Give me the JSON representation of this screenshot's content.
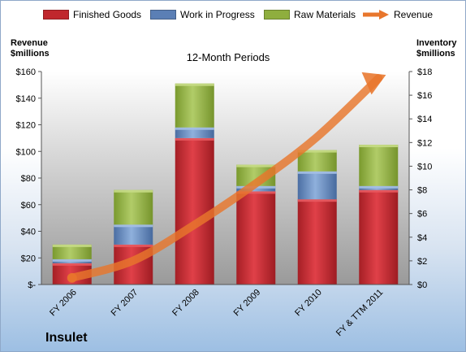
{
  "legend": {
    "finished_goods": "Finished Goods",
    "work_in_progress": "Work in Progress",
    "raw_materials": "Raw Materials",
    "revenue": "Revenue"
  },
  "axes": {
    "left_label_line1": "Revenue",
    "left_label_line2": "$millions",
    "right_label_line1": "Inventory",
    "right_label_line2": "$millions"
  },
  "period_label": "12-Month Periods",
  "company": "Insulet",
  "colors": {
    "finished_goods": "#c0272d",
    "work_in_progress": "#5b7fb5",
    "raw_materials": "#8fae3e",
    "revenue": "#e8762c",
    "plot_top": "#ffffff",
    "plot_bottom": "#9a9a9a"
  },
  "chart_data": {
    "type": "bar",
    "stacked": true,
    "categories": [
      "FY 2006",
      "FY 2007",
      "FY 2008",
      "FY 2009",
      "FY 2010",
      "FY & TTM 2011"
    ],
    "series": [
      {
        "name": "Finished Goods",
        "axis": "left",
        "values": [
          16,
          30,
          110,
          70,
          64,
          71
        ]
      },
      {
        "name": "Work in Progress",
        "axis": "left",
        "values": [
          3,
          15,
          8,
          4,
          21,
          3
        ]
      },
      {
        "name": "Raw Materials",
        "axis": "left",
        "values": [
          11,
          26,
          33,
          16,
          16,
          31
        ]
      },
      {
        "name": "Revenue",
        "type": "line",
        "axis": "left",
        "values": [
          5,
          18,
          45,
          76,
          111,
          155
        ]
      }
    ],
    "left_axis": {
      "ylim": [
        0,
        160
      ],
      "ticks": [
        "$-",
        "$20",
        "$40",
        "$60",
        "$80",
        "$100",
        "$120",
        "$140",
        "$160"
      ]
    },
    "right_axis": {
      "ylim": [
        0,
        18
      ],
      "ticks": [
        "$0",
        "$2",
        "$4",
        "$6",
        "$8",
        "$10",
        "$12",
        "$14",
        "$16",
        "$18"
      ]
    },
    "grid": false,
    "legend_position": "top"
  }
}
